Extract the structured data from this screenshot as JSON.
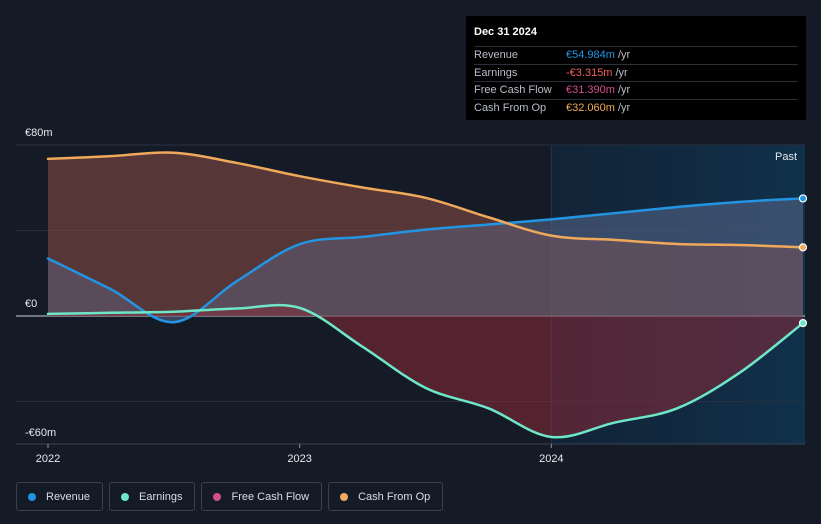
{
  "chart_data": {
    "type": "area",
    "x_ticks": [
      "2022",
      "2023",
      "2024"
    ],
    "x_range": [
      2021.9,
      2025.0
    ],
    "y_ticks": [
      {
        "value": 80,
        "label": "€80m"
      },
      {
        "value": 0,
        "label": "€0"
      },
      {
        "value": -60,
        "label": "-€60m"
      }
    ],
    "ylim": [
      -60,
      80
    ],
    "past_label": "Past",
    "forecast_start": 2024.0,
    "series": [
      {
        "name": "Revenue",
        "color": "#2394e2",
        "points": [
          [
            2022.0,
            26.9
          ],
          [
            2022.25,
            12.5
          ],
          [
            2022.5,
            -2.9
          ],
          [
            2022.75,
            16.3
          ],
          [
            2023.0,
            33.6
          ],
          [
            2023.25,
            37.0
          ],
          [
            2023.5,
            40.4
          ],
          [
            2023.75,
            42.8
          ],
          [
            2024.0,
            45.2
          ],
          [
            2024.25,
            48.1
          ],
          [
            2024.5,
            51.0
          ],
          [
            2024.75,
            53.4
          ],
          [
            2025.0,
            55.0
          ]
        ]
      },
      {
        "name": "Earnings",
        "color": "#6ee7c8",
        "points": [
          [
            2022.0,
            1.0
          ],
          [
            2022.25,
            1.5
          ],
          [
            2022.5,
            2.0
          ],
          [
            2022.75,
            3.5
          ],
          [
            2023.0,
            3.8
          ],
          [
            2023.25,
            -14.4
          ],
          [
            2023.5,
            -33.6
          ],
          [
            2023.75,
            -43.2
          ],
          [
            2024.0,
            -56.6
          ],
          [
            2024.25,
            -49.9
          ],
          [
            2024.5,
            -43.2
          ],
          [
            2024.75,
            -26.4
          ],
          [
            2025.0,
            -3.3
          ]
        ]
      },
      {
        "name": "Free Cash Flow",
        "color": "#d44f8a",
        "points": [
          [
            2022.0,
            73.0
          ],
          [
            2022.25,
            74.4
          ],
          [
            2022.5,
            76.0
          ],
          [
            2022.75,
            71.1
          ],
          [
            2023.0,
            64.8
          ],
          [
            2023.25,
            59.5
          ],
          [
            2023.5,
            54.7
          ],
          [
            2023.75,
            45.6
          ],
          [
            2024.0,
            37.0
          ],
          [
            2024.25,
            35.0
          ],
          [
            2024.5,
            33.1
          ],
          [
            2024.75,
            32.6
          ],
          [
            2025.0,
            31.4
          ]
        ]
      },
      {
        "name": "Cash From Op",
        "color": "#f0a95a",
        "points": [
          [
            2022.0,
            73.5
          ],
          [
            2022.25,
            74.8
          ],
          [
            2022.5,
            76.4
          ],
          [
            2022.75,
            71.6
          ],
          [
            2023.0,
            65.4
          ],
          [
            2023.25,
            60.1
          ],
          [
            2023.5,
            55.3
          ],
          [
            2023.75,
            46.2
          ],
          [
            2024.0,
            37.6
          ],
          [
            2024.25,
            35.6
          ],
          [
            2024.5,
            33.7
          ],
          [
            2024.75,
            33.2
          ],
          [
            2025.0,
            32.1
          ]
        ]
      }
    ]
  },
  "tooltip": {
    "date": "Dec 31 2024",
    "rows": [
      {
        "label": "Revenue",
        "value": "€54.984m",
        "unit": "/yr",
        "color": "#2394e2"
      },
      {
        "label": "Earnings",
        "value": "-€3.315m",
        "unit": "/yr",
        "color": "#f25f5c"
      },
      {
        "label": "Free Cash Flow",
        "value": "€31.390m",
        "unit": "/yr",
        "color": "#d44f8a"
      },
      {
        "label": "Cash From Op",
        "value": "€32.060m",
        "unit": "/yr",
        "color": "#f0a95a"
      }
    ]
  },
  "legend": [
    {
      "label": "Revenue",
      "color": "#2394e2"
    },
    {
      "label": "Earnings",
      "color": "#6ee7c8"
    },
    {
      "label": "Free Cash Flow",
      "color": "#d44f8a"
    },
    {
      "label": "Cash From Op",
      "color": "#f0a95a"
    }
  ]
}
